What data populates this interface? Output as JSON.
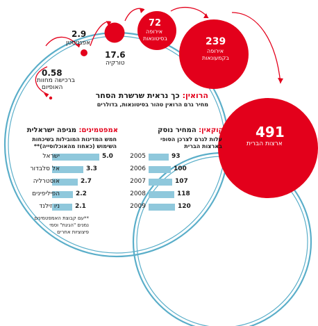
{
  "heroin": {
    "title_red": "הרואין:",
    "title_black": "כך נראית שרשרת הסחר",
    "subtitle": "מחיר גרם הרואין טהור בסיטונאות, בדולרים",
    "points": [
      {
        "value": "0.58",
        "label1": "ברכישה מחוות",
        "label2": "האופיום"
      },
      {
        "value": "2.9",
        "label1": "אפגניסטן",
        "label2": ""
      },
      {
        "value": "17.6",
        "label1": "טורקיה",
        "label2": ""
      },
      {
        "value": "72",
        "label1": "אירופה",
        "label2": "בסיטונאות"
      },
      {
        "value": "239",
        "label1": "אירופה",
        "label2": "בקמעונאות"
      },
      {
        "value": "491",
        "label1": "ארצות הברית",
        "label2": ""
      }
    ]
  },
  "amphetamine": {
    "title_red": "אמפטמינים:",
    "title_black": "מגיפה ישראלית",
    "subtitle1": "חמש המדינות המובילות בשיכחות",
    "subtitle2": "השימוש (כאחוז מהאוכלוסייה)**",
    "footnote1": "**עם קבוצת האמפטמינים",
    "footnote2": "נמנים \"הגיגת\" וסמי",
    "footnote3": "פיצוציות אחרים"
  },
  "cocaine": {
    "title_red": "קוקאין:",
    "title_black": "המחיר נוסק",
    "subtitle1": "עלות לגרם לצרכן הסופי",
    "subtitle2": "בארצות הברית"
  },
  "chart_data": [
    {
      "type": "bar",
      "title": "אמפטמינים: מגיפה ישראלית",
      "categories": [
        "ישראל",
        "אל סלבדור",
        "אוסטרליה",
        "הפיליפינים",
        "ניו זילנד"
      ],
      "values": [
        5.0,
        3.3,
        2.7,
        2.2,
        2.1
      ],
      "value_labels": [
        "5.0",
        "3.3",
        "2.7",
        "2.2",
        "2.1"
      ],
      "orientation": "horizontal",
      "color": "#8fc8dc"
    },
    {
      "type": "bar",
      "title": "קוקאין: המחיר נוסק",
      "categories": [
        "2005",
        "2006",
        "2007",
        "2008",
        "2009"
      ],
      "values": [
        93,
        100,
        107,
        118,
        120
      ],
      "value_labels": [
        "93",
        "100",
        "107",
        "118",
        "120"
      ],
      "orientation": "horizontal",
      "color": "#8fc8dc"
    },
    {
      "type": "scatter",
      "title": "הרואין: כך נראית שרשרת הסחר",
      "categories": [
        "ברכישה מחוות האופיום",
        "אפגניסטן",
        "טורקיה",
        "אירופה בסיטונאות",
        "אירופה בקמעונאות",
        "ארצות הברית"
      ],
      "values": [
        0.58,
        2.9,
        17.6,
        72,
        239,
        491
      ]
    }
  ],
  "colors": {
    "red": "#e3001b",
    "ring": "#5aaec9",
    "bar": "#8fc8dc"
  }
}
